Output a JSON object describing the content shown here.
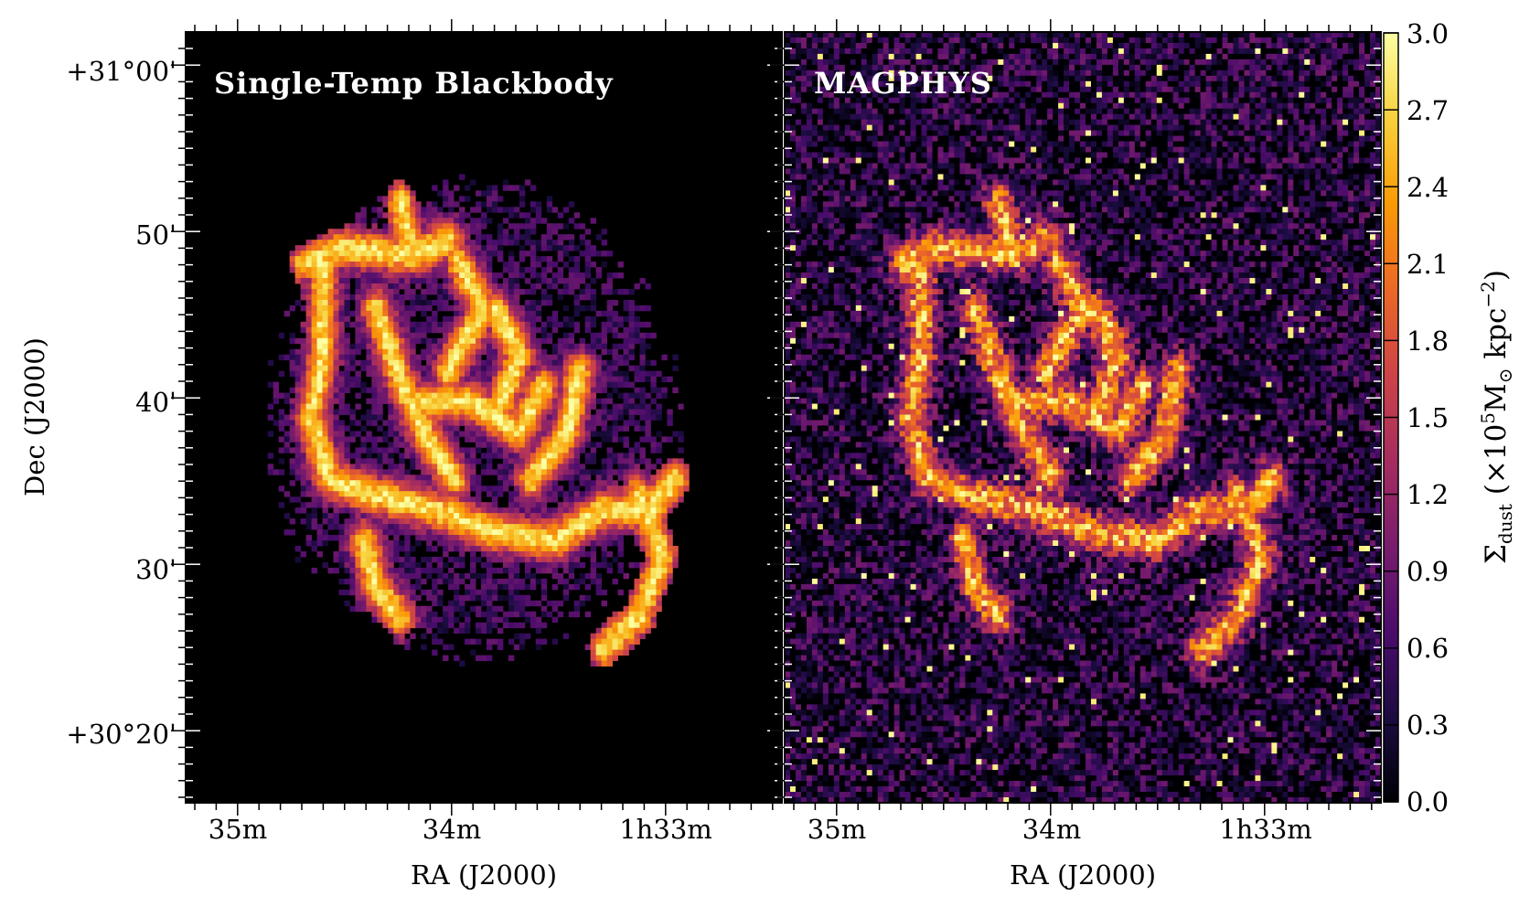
{
  "chart_data": [
    {
      "type": "heatmap",
      "title": "Single-Temp Blackbody",
      "xlabel": "RA (J2000)",
      "ylabel": "Dec (J2000)",
      "x_ticks": [
        "35m",
        "34m",
        "1h33m"
      ],
      "y_ticks": [
        "+31°00'",
        "50'",
        "40'",
        "30'",
        "+30°20'"
      ],
      "colormap": "inferno",
      "masked_outside_region": true
    },
    {
      "type": "heatmap",
      "title": "MAGPHYS",
      "xlabel": "RA (J2000)",
      "x_ticks": [
        "35m",
        "34m",
        "1h33m"
      ],
      "colormap": "inferno",
      "masked_outside_region": false
    }
  ],
  "colorbar": {
    "label": "Σ_dust (×10^5 M_⊙ kpc^−2)",
    "label_parts": {
      "symbol": "Σ",
      "sub": "dust",
      "open": " (×10",
      "exp": "5",
      "unit": "M",
      "sun": "⊙",
      "unit2": " kpc",
      "exp2": "−2",
      "close": ")"
    },
    "range": [
      0.0,
      3.0
    ],
    "ticks": [
      "3.0",
      "2.7",
      "2.4",
      "2.1",
      "1.8",
      "1.5",
      "1.2",
      "0.9",
      "0.6",
      "0.3",
      "0.0"
    ]
  },
  "colors": {
    "background": "#000000",
    "inferno_stops": [
      "#000004",
      "#1b0c41",
      "#4a0c6b",
      "#781c6d",
      "#a52c60",
      "#cf4446",
      "#ed6925",
      "#fb9b06",
      "#f7d13d",
      "#fcffa4"
    ]
  }
}
